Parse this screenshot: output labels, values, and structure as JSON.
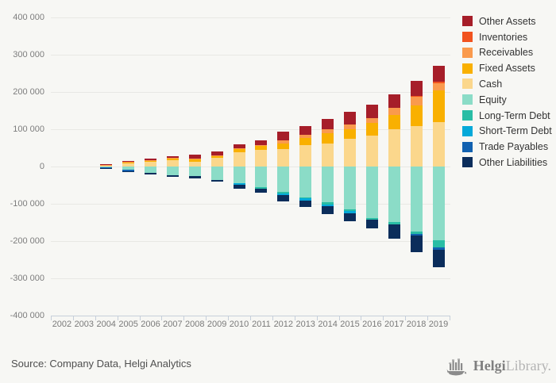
{
  "page": {
    "background": "#f7f7f4"
  },
  "chart_data": {
    "type": "bar",
    "stacked": true,
    "orientation": "vertical",
    "title": "",
    "categories": [
      "2002",
      "2003",
      "2004",
      "2005",
      "2006",
      "2007",
      "2008",
      "2009",
      "2010",
      "2011",
      "2012",
      "2013",
      "2014",
      "2015",
      "2016",
      "2017",
      "2018",
      "2019"
    ],
    "series": [
      {
        "name": "Other Assets",
        "color": "#a61e29",
        "values": [
          0,
          0,
          1500,
          1000,
          4000,
          4500,
          9500,
          10000,
          11500,
          12000,
          23000,
          24500,
          29000,
          35000,
          35000,
          38000,
          41000,
          43000
        ]
      },
      {
        "name": "Inventories",
        "color": "#f1531f",
        "values": [
          0,
          0,
          0,
          0,
          0,
          0,
          0,
          0,
          0,
          0,
          0,
          0,
          0,
          0,
          0,
          0,
          2000,
          4000
        ]
      },
      {
        "name": "Receivables",
        "color": "#fa9a4d",
        "values": [
          0,
          0,
          500,
          2500,
          1500,
          1500,
          1500,
          1000,
          1000,
          1000,
          9000,
          8500,
          10500,
          12500,
          14000,
          17500,
          22500,
          19000
        ]
      },
      {
        "name": "Fixed Assets",
        "color": "#f9b000",
        "values": [
          0,
          0,
          1500,
          2500,
          2500,
          3000,
          8000,
          6500,
          8500,
          12000,
          14000,
          19000,
          26000,
          26000,
          32000,
          40000,
          56000,
          86000
        ]
      },
      {
        "name": "Cash",
        "color": "#fbd78c",
        "values": [
          0,
          0,
          2500,
          9000,
          13000,
          18000,
          12000,
          22500,
          39000,
          45000,
          47000,
          57500,
          62500,
          73500,
          84000,
          99000,
          108500,
          119000
        ]
      },
      {
        "name": "Equity",
        "color": "#8bdcc7",
        "values": [
          0,
          0,
          -2500,
          -9000,
          -16500,
          -23000,
          -25500,
          -35500,
          -44000,
          -54500,
          -69000,
          -82000,
          -96500,
          -114000,
          -137500,
          -148000,
          -174000,
          -197000
        ]
      },
      {
        "name": "Long-Term Debt",
        "color": "#29bda5",
        "values": [
          0,
          0,
          0,
          0,
          0,
          0,
          0,
          0,
          0,
          -5500,
          -4000,
          -4000,
          -5000,
          -5000,
          -4000,
          -6500,
          -7000,
          -19500
        ]
      },
      {
        "name": "Short-Term Debt",
        "color": "#04a9d9",
        "values": [
          0,
          0,
          0,
          0,
          0,
          0,
          0,
          0,
          -5000,
          0,
          -4500,
          -4500,
          -4500,
          -5500,
          0,
          0,
          0,
          0
        ]
      },
      {
        "name": "Trade Payables",
        "color": "#1161b0",
        "values": [
          0,
          0,
          -1000,
          -3500,
          0,
          0,
          0,
          0,
          0,
          0,
          0,
          0,
          0,
          0,
          0,
          0,
          -3500,
          -7000
        ]
      },
      {
        "name": "Other Liabilities",
        "color": "#0b2d5b",
        "values": [
          0,
          0,
          -2500,
          -2500,
          -4500,
          -4000,
          -5500,
          -4500,
          -11000,
          -10000,
          -15500,
          -19000,
          -22000,
          -22500,
          -23500,
          -40000,
          -45500,
          -47500
        ]
      }
    ],
    "ylim": [
      -400000,
      400000
    ],
    "ytick_labels": [
      "400 000",
      "300 000",
      "200 000",
      "100 000",
      "0",
      "-100 000",
      "-200 000",
      "-300 000",
      "-400 000"
    ],
    "grid": true,
    "legend_position": "right"
  },
  "footer": {
    "source_text": "Source: Company Data, Helgi Analytics",
    "logo_icon": "viking-ship-icon",
    "logo_helgi": "Helgi",
    "logo_library": "Library."
  }
}
